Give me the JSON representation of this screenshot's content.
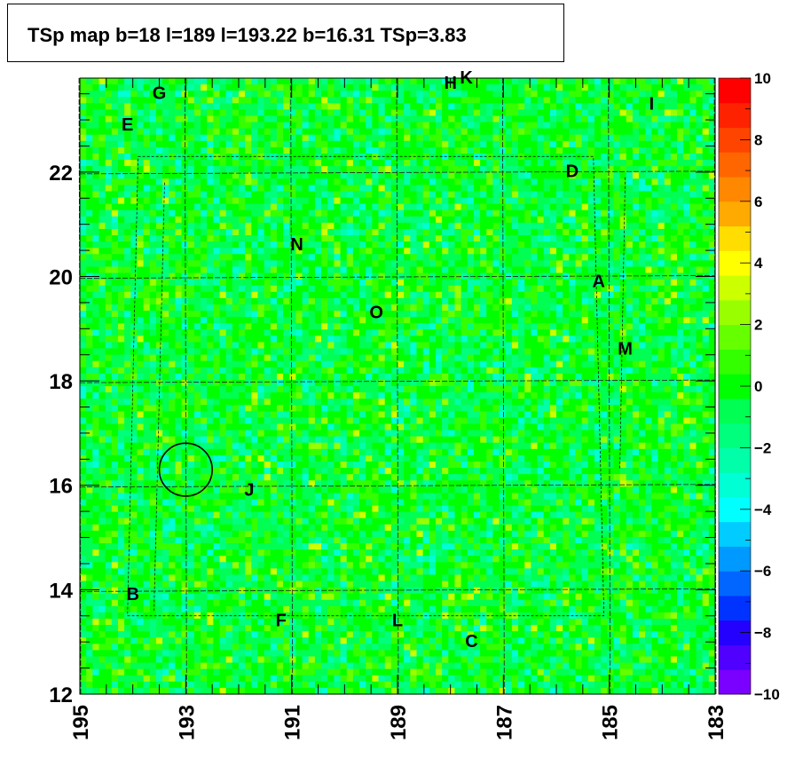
{
  "title": "TSp map b=18 l=189 l=193.22 b=16.31 TSp=3.83",
  "chart_data": {
    "type": "heatmap",
    "title": "TSp map b=18 l=189 l=193.22 b=16.31 TSp=3.83",
    "xlabel": "",
    "ylabel": "",
    "x_axis": {
      "min": 183,
      "max": 195,
      "reversed": true,
      "ticks": [
        "195",
        "193",
        "191",
        "189",
        "187",
        "185",
        "183"
      ]
    },
    "y_axis": {
      "min": 12,
      "max": 23.8,
      "ticks": [
        "12",
        "14",
        "16",
        "18",
        "20",
        "22"
      ]
    },
    "z_axis": {
      "min": -10,
      "max": 10,
      "ticks": [
        "10",
        "8",
        "6",
        "4",
        "2",
        "0",
        "−2",
        "−4",
        "−6",
        "−8",
        "−10"
      ]
    },
    "colorbar": [
      "#7a00ff",
      "#4f00ff",
      "#2400ff",
      "#0033ff",
      "#0066ff",
      "#0099ff",
      "#00ccff",
      "#00ffff",
      "#00ffd4",
      "#00ffa8",
      "#00ff7d",
      "#00ff52",
      "#00ff00",
      "#33ff00",
      "#66ff00",
      "#99ff00",
      "#ccff00",
      "#ffff00",
      "#ffdd00",
      "#ffaa00",
      "#ff8800",
      "#ff6600",
      "#ff4400",
      "#ff2200",
      "#ff0000"
    ],
    "highlight_circle": {
      "l": 193.0,
      "b": 16.3,
      "radius_deg": 0.5
    },
    "sources": [
      {
        "name": "A",
        "l": 185.2,
        "b": 19.8
      },
      {
        "name": "B",
        "l": 194.0,
        "b": 13.8
      },
      {
        "name": "C",
        "l": 187.6,
        "b": 12.9
      },
      {
        "name": "D",
        "l": 185.7,
        "b": 21.9
      },
      {
        "name": "E",
        "l": 194.1,
        "b": 22.8
      },
      {
        "name": "F",
        "l": 191.2,
        "b": 13.3
      },
      {
        "name": "G",
        "l": 193.5,
        "b": 23.4
      },
      {
        "name": "H",
        "l": 188.0,
        "b": 23.6
      },
      {
        "name": "K",
        "l": 187.7,
        "b": 23.7
      },
      {
        "name": "I",
        "l": 184.2,
        "b": 23.2
      },
      {
        "name": "J",
        "l": 191.8,
        "b": 15.8
      },
      {
        "name": "L",
        "l": 189.0,
        "b": 13.3
      },
      {
        "name": "M",
        "l": 184.7,
        "b": 18.5
      },
      {
        "name": "N",
        "l": 190.9,
        "b": 20.5
      },
      {
        "name": "O",
        "l": 189.4,
        "b": 19.2
      }
    ]
  }
}
